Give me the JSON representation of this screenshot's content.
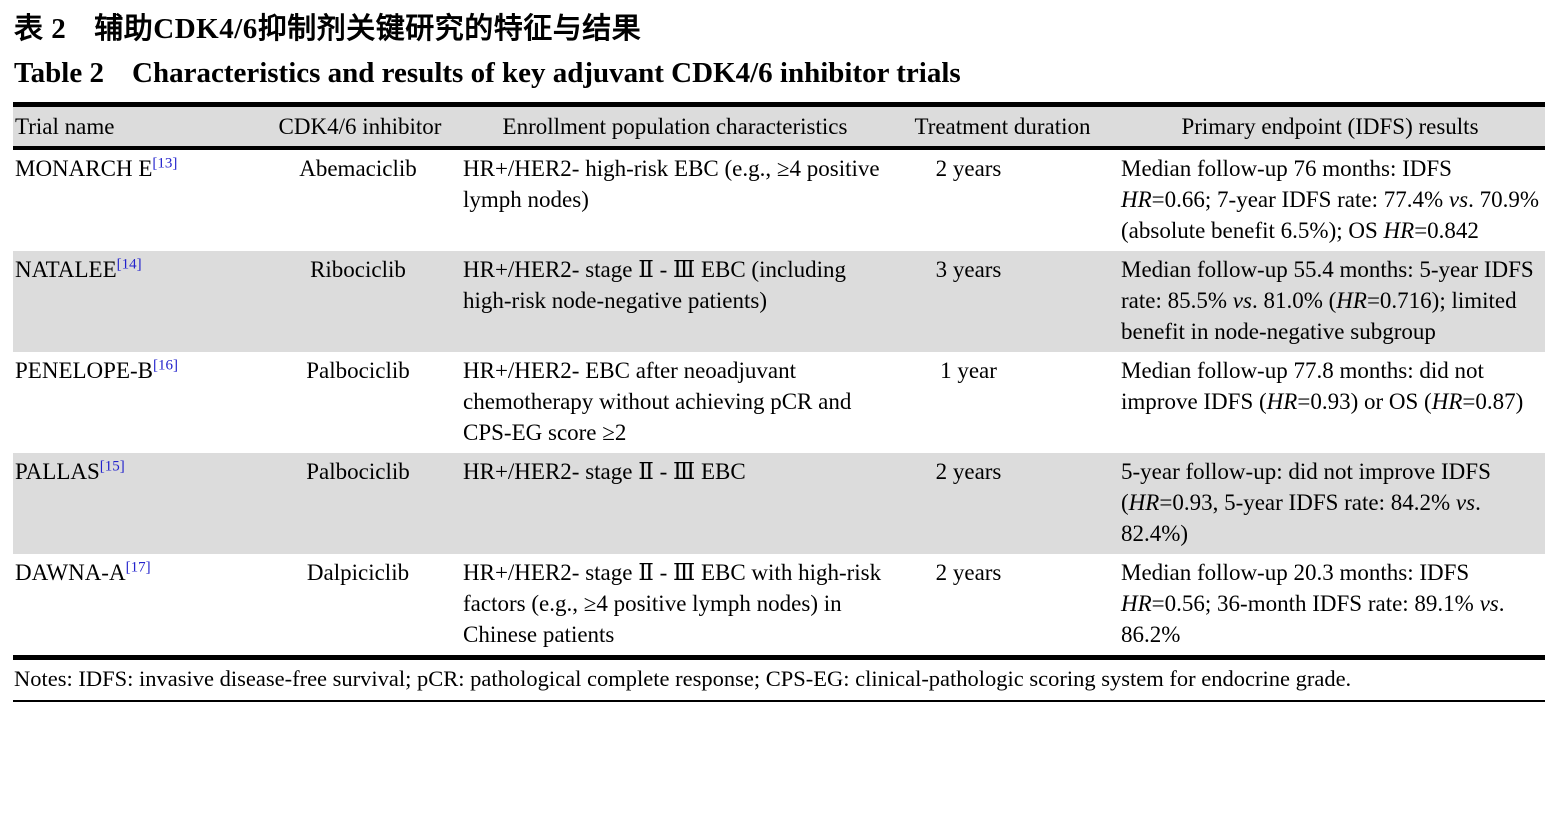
{
  "colors": {
    "row_shade": "#dcdcdc",
    "citation_blue": "#2222cc",
    "rule_black": "#000000"
  },
  "titles": {
    "zh": {
      "label": "表 2",
      "text": "辅助CDK4/6抑制剂关键研究的特征与结果"
    },
    "en": {
      "label": "Table 2",
      "text": "Characteristics and results of key adjuvant CDK4/6 inhibitor trials"
    }
  },
  "table": {
    "columns": [
      {
        "label": "Trial name"
      },
      {
        "label": "CDK4/6 inhibitor"
      },
      {
        "label": "Enrollment population characteristics"
      },
      {
        "label": "Treatment duration"
      },
      {
        "label": "Primary endpoint (IDFS) results"
      }
    ],
    "rows": [
      {
        "trial": "MONARCH E",
        "ref": "[13]",
        "inhibitor": "Abemaciclib",
        "population": "HR+/HER2- high-risk EBC (e.g., ≥4 positive lymph nodes)",
        "duration": "2 years",
        "results": "Median follow-up 76 months: IDFS *HR*=0.66; 7-year IDFS rate: 77.4% *vs*. 70.9% (absolute benefit 6.5%); OS *HR*=0.842"
      },
      {
        "trial": "NATALEE",
        "ref": "[14]",
        "inhibitor": "Ribociclib",
        "population": "HR+/HER2- stage Ⅱ - Ⅲ EBC (including high-risk node-negative patients)",
        "duration": "3 years",
        "results": "Median follow-up 55.4 months: 5-year IDFS rate: 85.5% *vs*. 81.0% (*HR*=0.716); limited benefit in node-negative subgroup"
      },
      {
        "trial": "PENELOPE-B",
        "ref": "[16]",
        "inhibitor": "Palbociclib",
        "population": "HR+/HER2- EBC after neoadjuvant chemotherapy without achieving pCR and CPS-EG score ≥2",
        "duration": "1 year",
        "results": "Median follow-up 77.8 months: did not improve IDFS (*HR*=0.93) or OS (*HR*=0.87)"
      },
      {
        "trial": "PALLAS",
        "ref": "[15]",
        "inhibitor": "Palbociclib",
        "population": "HR+/HER2- stage Ⅱ - Ⅲ EBC",
        "duration": "2 years",
        "results": "5-year follow-up: did not improve IDFS (*HR*=0.93, 5-year IDFS rate: 84.2% *vs*. 82.4%)"
      },
      {
        "trial": "DAWNA-A",
        "ref": "[17]",
        "inhibitor": "Dalpiciclib",
        "population": "HR+/HER2- stage Ⅱ - Ⅲ EBC with high-risk factors (e.g., ≥4 positive lymph nodes) in Chinese patients",
        "duration": "2 years",
        "results": "Median follow-up 20.3 months: IDFS *HR*=0.56; 36-month IDFS rate: 89.1% *vs*. 86.2%"
      }
    ]
  },
  "notes": "Notes: IDFS: invasive disease-free survival; pCR: pathological complete response; CPS-EG: clinical-pathologic scoring system for endocrine grade."
}
